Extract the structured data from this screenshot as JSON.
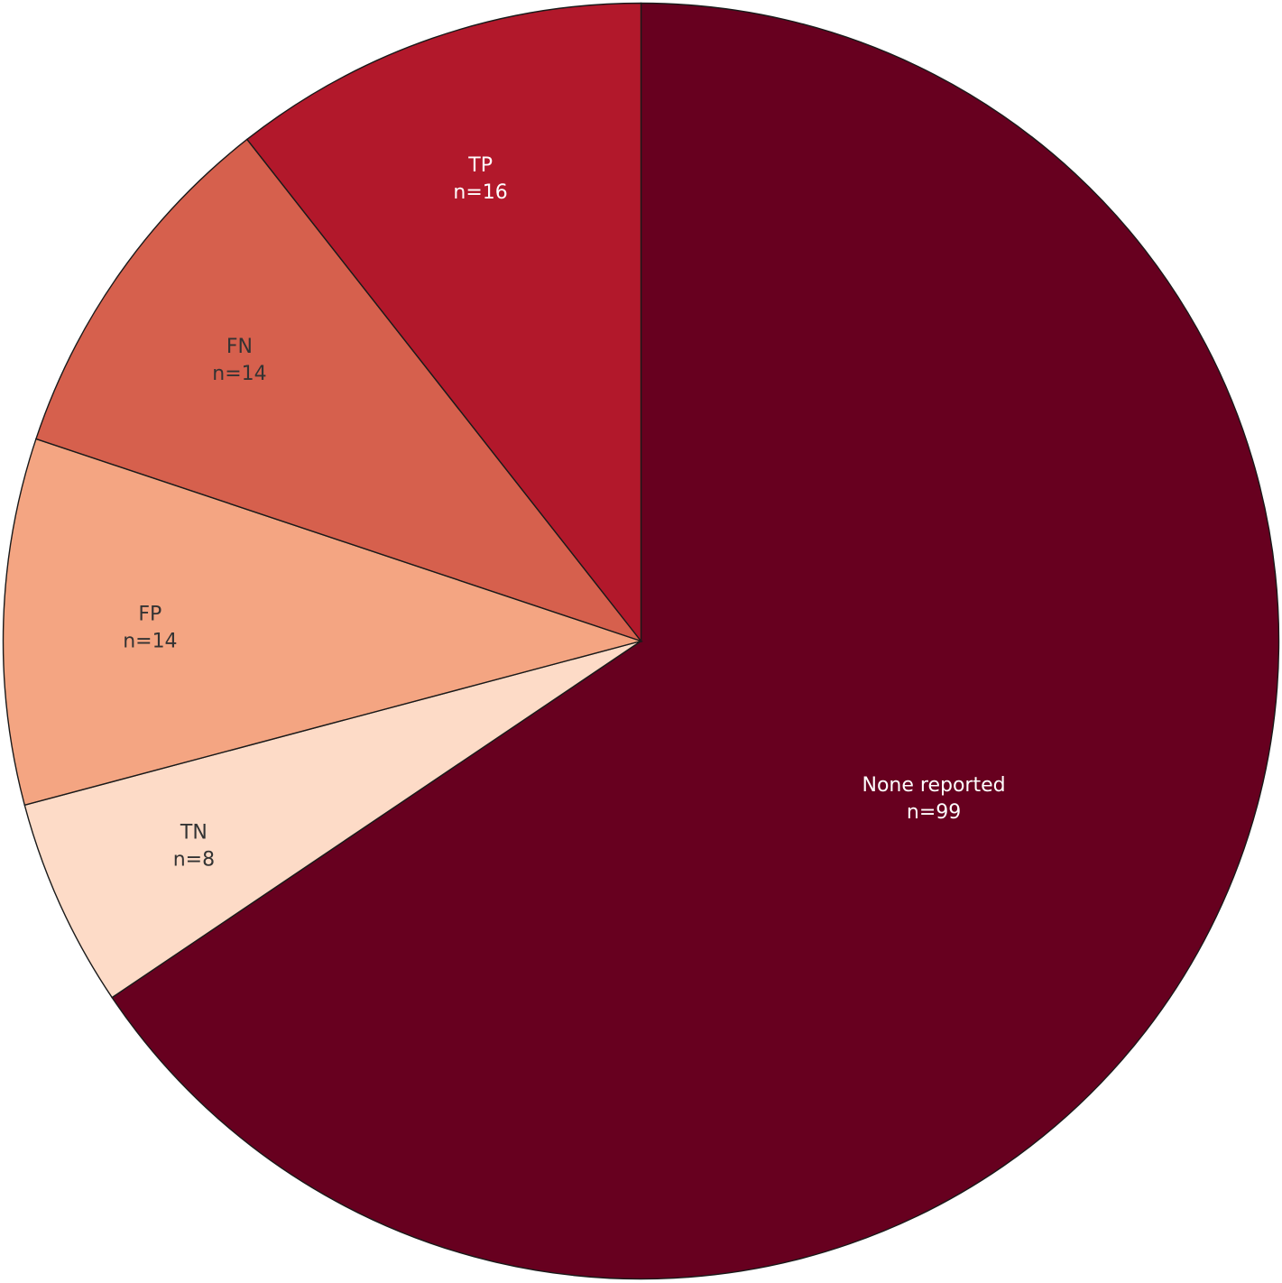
{
  "chart_data": {
    "type": "pie",
    "title": "",
    "slices": [
      {
        "label": "None reported",
        "count_label": "n=99",
        "value": 99,
        "color": "#67001f",
        "text_color": "#ffffff"
      },
      {
        "label": "TN",
        "count_label": "n=8",
        "value": 8,
        "color": "#fddbc7",
        "text_color": "#333333"
      },
      {
        "label": "FP",
        "count_label": "n=14",
        "value": 14,
        "color": "#f4a582",
        "text_color": "#333333"
      },
      {
        "label": "FN",
        "count_label": "n=14",
        "value": 14,
        "color": "#d6604d",
        "text_color": "#333333"
      },
      {
        "label": "TP",
        "count_label": "n=16",
        "value": 16,
        "color": "#b2182b",
        "text_color": "#ffffff"
      }
    ],
    "direction": "clockwise",
    "start": "top",
    "legend": "none"
  }
}
